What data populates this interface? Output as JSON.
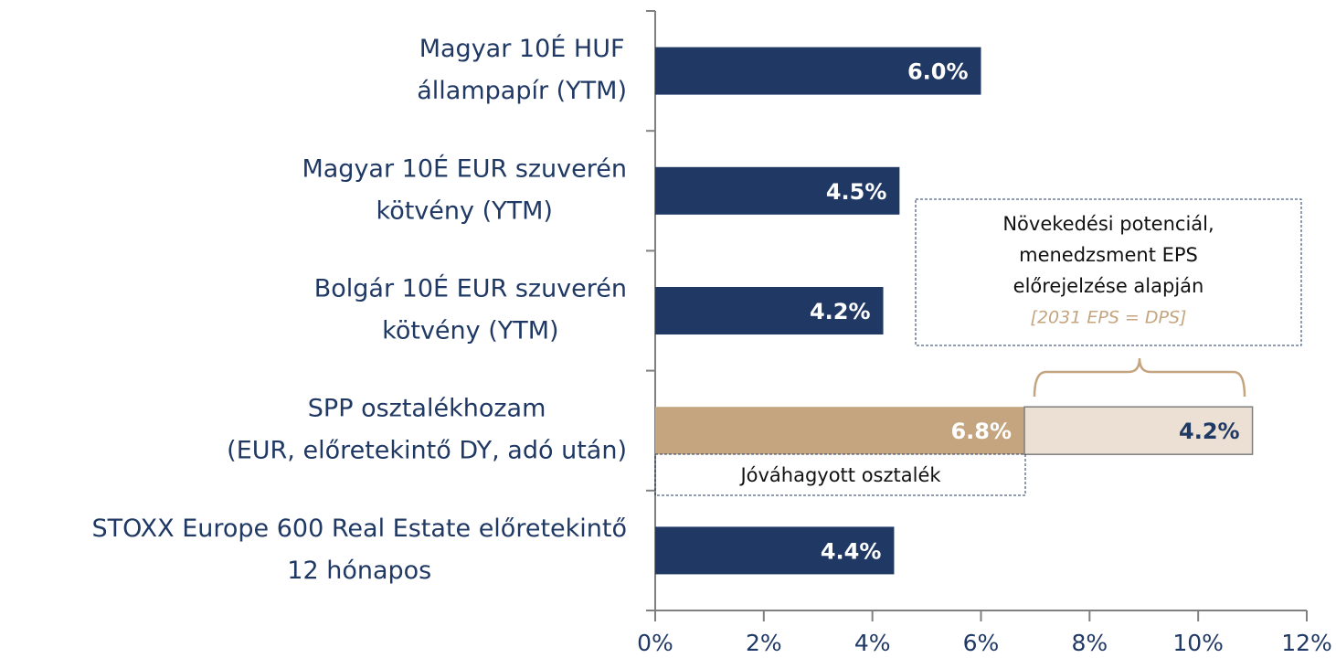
{
  "chart_data": {
    "type": "hbar",
    "categories": [
      [
        "Magyar 10É HUF",
        "állampapír (YTM)"
      ],
      [
        "Magyar 10É EUR szuverén",
        "kötvény (YTM)"
      ],
      [
        "Bolgár 10É EUR szuverén",
        "kötvény (YTM)"
      ],
      [
        "SPP osztalékhozam",
        "(EUR, előretekintő DY, adó után)"
      ],
      [
        "STOXX Europe 600 Real Estate előretekintő",
        "12 hónapos"
      ]
    ],
    "series": [
      {
        "colors": [
          "#1f3864",
          "#1f3864",
          "#1f3864",
          "#c4a57f",
          "#1f3864"
        ],
        "values": [
          6.0,
          4.5,
          4.2,
          6.8,
          4.4
        ],
        "value_labels": [
          "6.0%",
          "4.5%",
          "4.2%",
          "6.8%",
          "4.4%"
        ]
      },
      {
        "color": "#ebe0d3",
        "values": [
          null,
          null,
          null,
          4.2,
          null
        ],
        "value_labels": [
          null,
          null,
          null,
          "4.2%",
          null
        ]
      }
    ],
    "xlim": [
      0,
      12
    ],
    "xticks": [
      {
        "value": 0,
        "label": "0%"
      },
      {
        "value": 2,
        "label": "2%"
      },
      {
        "value": 4,
        "label": "4%"
      },
      {
        "value": 6,
        "label": "6%"
      },
      {
        "value": 8,
        "label": "8%"
      },
      {
        "value": 10,
        "label": "10%"
      },
      {
        "value": 12,
        "label": "12%"
      }
    ],
    "annotations": {
      "approved": "Jóváhagyott osztalék",
      "growth": [
        "Növekedési potenciál,",
        "menedzsment EPS",
        "előrejelzése alapján"
      ],
      "growth_note": "[2031 EPS = DPS]"
    }
  }
}
